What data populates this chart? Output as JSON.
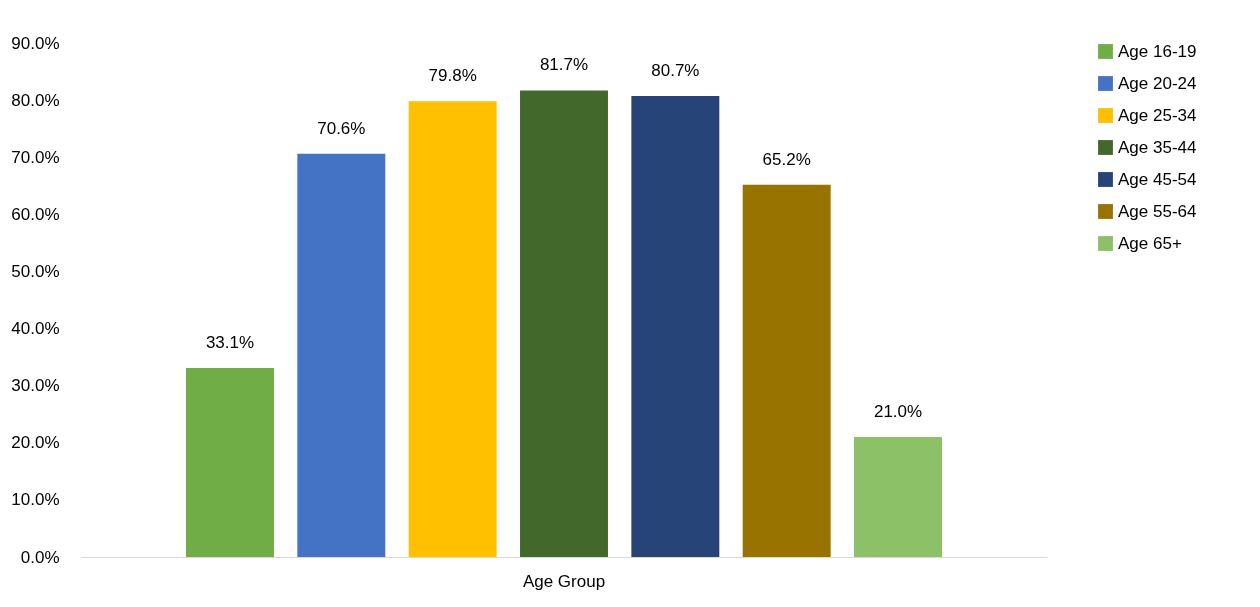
{
  "chart_data": {
    "type": "bar",
    "categories": [
      "Age Group"
    ],
    "series": [
      {
        "name": "Age 16-19",
        "color": "#70ad47",
        "values": [
          33.1
        ],
        "value_labels": [
          "33.1%"
        ]
      },
      {
        "name": "Age 20-24",
        "color": "#4472c4",
        "values": [
          70.6
        ],
        "value_labels": [
          "70.6%"
        ]
      },
      {
        "name": "Age 25-34",
        "color": "#ffc000",
        "values": [
          79.8
        ],
        "value_labels": [
          "79.8%"
        ]
      },
      {
        "name": "Age 35-44",
        "color": "#43682b",
        "values": [
          81.7
        ],
        "value_labels": [
          "81.7%"
        ]
      },
      {
        "name": "Age 45-54",
        "color": "#264478",
        "values": [
          80.7
        ],
        "value_labels": [
          "80.7%"
        ]
      },
      {
        "name": "Age 55-64",
        "color": "#997300",
        "values": [
          65.2
        ],
        "value_labels": [
          "65.2%"
        ]
      },
      {
        "name": "Age 65+",
        "color": "#8cc168",
        "values": [
          21.0
        ],
        "value_labels": [
          "21.0%"
        ]
      }
    ],
    "ylim": [
      0,
      90
    ],
    "yticks": [
      {
        "value": 0,
        "label": "0.0%"
      },
      {
        "value": 10,
        "label": "10.0%"
      },
      {
        "value": 20,
        "label": "20.0%"
      },
      {
        "value": 30,
        "label": "30.0%"
      },
      {
        "value": 40,
        "label": "40.0%"
      },
      {
        "value": 50,
        "label": "50.0%"
      },
      {
        "value": 60,
        "label": "60.0%"
      },
      {
        "value": 70,
        "label": "70.0%"
      },
      {
        "value": 80,
        "label": "80.0%"
      },
      {
        "value": 90,
        "label": "90.0%"
      }
    ],
    "legend": "right"
  }
}
